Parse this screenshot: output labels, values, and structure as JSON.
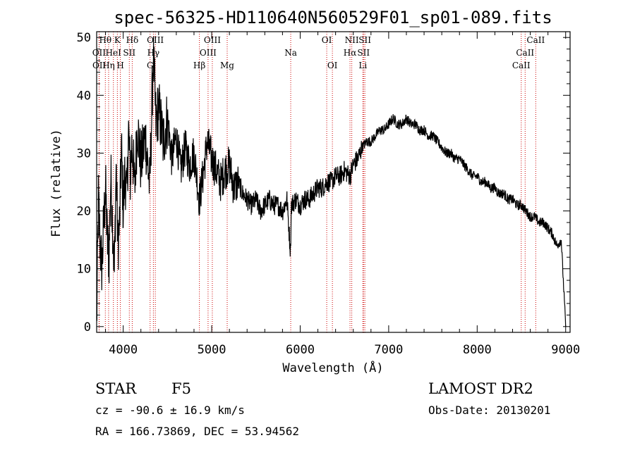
{
  "chart_data": {
    "type": "line",
    "title": "spec-56325-HD110640N560529F01_sp01-089.fits",
    "xlabel": "Wavelength (Å)",
    "ylabel": "Flux (relative)",
    "xlim": [
      3700,
      9050
    ],
    "ylim": [
      -1,
      51
    ],
    "xticks": [
      4000,
      5000,
      6000,
      7000,
      8000,
      9000
    ],
    "yticks": [
      0,
      10,
      20,
      30,
      40,
      50
    ],
    "series": [
      {
        "name": "spectrum",
        "x": [
          3700,
          3720,
          3740,
          3760,
          3780,
          3800,
          3820,
          3840,
          3860,
          3880,
          3900,
          3920,
          3940,
          3960,
          3980,
          4000,
          4020,
          4040,
          4060,
          4080,
          4100,
          4130,
          4160,
          4200,
          4250,
          4300,
          4340,
          4370,
          4400,
          4450,
          4500,
          4550,
          4600,
          4650,
          4700,
          4750,
          4800,
          4861,
          4900,
          4950,
          5000,
          5050,
          5100,
          5150,
          5200,
          5250,
          5300,
          5350,
          5400,
          5450,
          5500,
          5550,
          5600,
          5650,
          5700,
          5750,
          5800,
          5850,
          5890,
          5900,
          5950,
          6000,
          6050,
          6100,
          6150,
          6200,
          6250,
          6300,
          6350,
          6400,
          6450,
          6500,
          6563,
          6600,
          6650,
          6700,
          6750,
          6800,
          6850,
          6900,
          6950,
          7000,
          7050,
          7100,
          7150,
          7200,
          7250,
          7300,
          7350,
          7400,
          7450,
          7500,
          7550,
          7600,
          7650,
          7700,
          7750,
          7800,
          7850,
          7900,
          7950,
          8000,
          8050,
          8100,
          8150,
          8200,
          8250,
          8300,
          8350,
          8400,
          8450,
          8500,
          8550,
          8600,
          8650,
          8700,
          8750,
          8800,
          8850,
          8900,
          8950,
          9000
        ],
        "y": [
          0,
          22,
          14,
          10,
          18,
          24,
          15,
          12,
          26,
          18,
          9,
          28,
          14,
          18,
          31,
          20,
          27,
          22,
          34,
          26,
          32,
          24,
          35,
          28,
          33,
          24,
          47,
          35,
          38,
          32,
          36,
          29,
          33,
          27,
          31,
          28,
          30,
          22,
          26,
          32,
          29,
          27,
          25,
          27,
          28,
          24,
          25,
          23,
          22,
          21,
          22,
          20,
          21,
          22,
          21,
          21,
          20,
          22,
          13,
          21,
          22,
          21,
          22,
          22,
          23,
          24,
          24,
          25,
          25,
          26,
          26,
          27,
          26,
          28,
          29,
          31,
          32,
          32,
          33,
          34,
          34,
          35,
          36,
          35,
          35,
          36,
          35,
          35,
          34,
          34,
          33,
          33,
          32,
          31,
          30,
          30,
          29,
          29,
          28,
          27,
          26,
          26,
          25,
          25,
          24,
          24,
          23,
          23,
          22,
          22,
          21,
          21,
          20,
          19,
          19,
          18,
          18,
          17,
          16,
          14,
          15,
          0
        ]
      }
    ],
    "lines": [
      {
        "label": "Hθ",
        "x": 3798,
        "row": 1
      },
      {
        "label": "OII",
        "x": 3727,
        "row": 2
      },
      {
        "label": "OII",
        "x": 3729,
        "row": 3
      },
      {
        "label": "Hη",
        "x": 3835,
        "row": 3
      },
      {
        "label": "HeI",
        "x": 3889,
        "row": 2
      },
      {
        "label": "K",
        "x": 3934,
        "row": 1
      },
      {
        "label": "SII",
        "x": 4069,
        "row": 2
      },
      {
        "label": "H",
        "x": 3968,
        "row": 3
      },
      {
        "label": "Hδ",
        "x": 4102,
        "row": 1
      },
      {
        "label": "OIII",
        "x": 4363,
        "row": 1
      },
      {
        "label": "Hγ",
        "x": 4341,
        "row": 2
      },
      {
        "label": "G",
        "x": 4304,
        "row": 3
      },
      {
        "label": "Hβ",
        "x": 4861,
        "row": 3
      },
      {
        "label": "OIII",
        "x": 5007,
        "row": 1
      },
      {
        "label": "OIII",
        "x": 4959,
        "row": 2
      },
      {
        "label": "Mg",
        "x": 5175,
        "row": 3
      },
      {
        "label": "Na",
        "x": 5893,
        "row": 2
      },
      {
        "label": "OI",
        "x": 6300,
        "row": 1
      },
      {
        "label": "OI",
        "x": 6364,
        "row": 3
      },
      {
        "label": "NII",
        "x": 6583,
        "row": 1
      },
      {
        "label": "Hα",
        "x": 6563,
        "row": 2
      },
      {
        "label": "SII",
        "x": 6731,
        "row": 1
      },
      {
        "label": "SII",
        "x": 6716,
        "row": 2
      },
      {
        "label": "Li",
        "x": 6708,
        "row": 3
      },
      {
        "label": "CaII",
        "x": 8662,
        "row": 1
      },
      {
        "label": "CaII",
        "x": 8542,
        "row": 2
      },
      {
        "label": "CaII",
        "x": 8498,
        "row": 3
      }
    ],
    "grid": false,
    "legend": "none",
    "line_color": "#000000",
    "marker_color": "#cc0000"
  },
  "info": {
    "object_class": "STAR",
    "subclass": "F5",
    "cz": "cz = -90.6 ± 16.9 km/s",
    "coords": "RA = 166.73869, DEC =  53.94562",
    "survey": "LAMOST DR2",
    "obs_date": "Obs-Date: 20130201"
  }
}
